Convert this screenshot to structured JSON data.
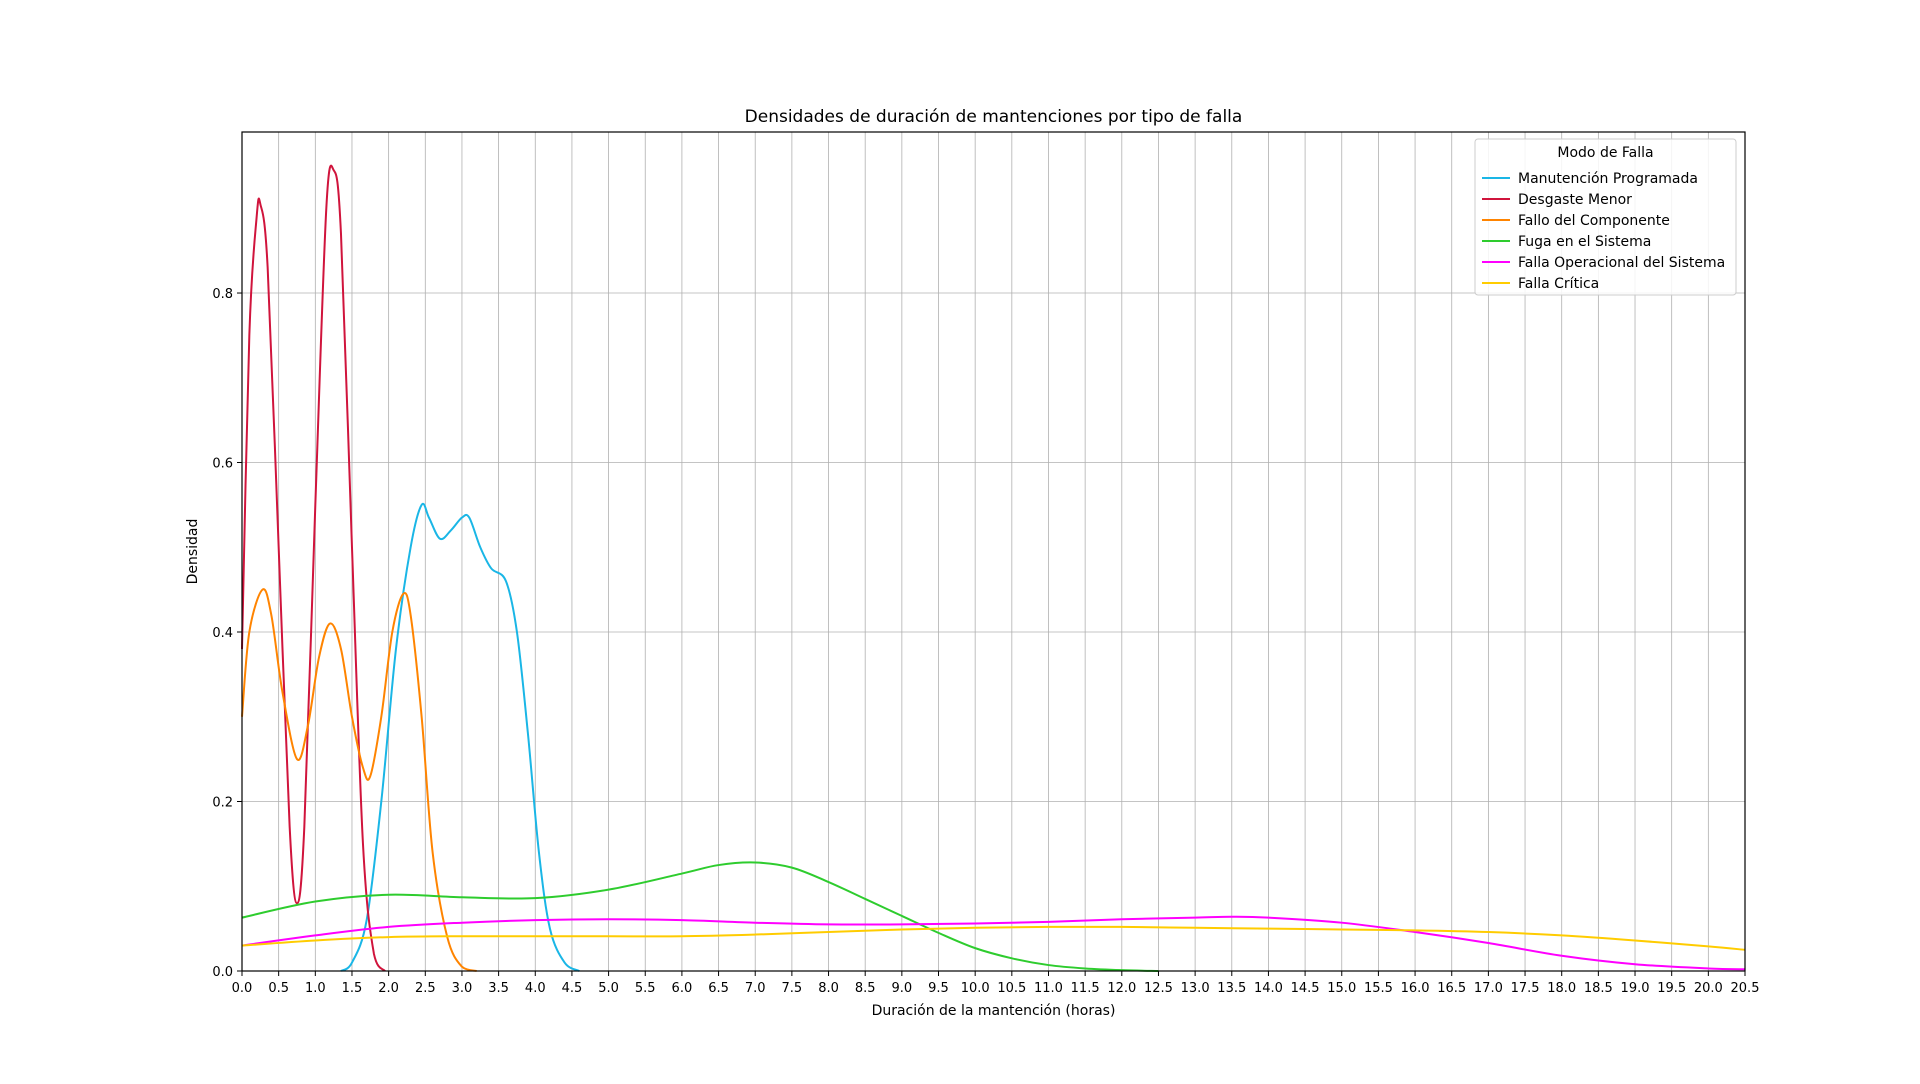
{
  "chart_data": {
    "type": "line",
    "title": "Densidades de duración de mantenciones por tipo de falla",
    "xlabel": "Duración de la mantención (horas)",
    "ylabel": "Densidad",
    "xlim": [
      0,
      20.5
    ],
    "ylim": [
      0,
      0.99
    ],
    "x_ticks": [
      0.0,
      0.5,
      1.0,
      1.5,
      2.0,
      2.5,
      3.0,
      3.5,
      4.0,
      4.5,
      5.0,
      5.5,
      6.0,
      6.5,
      7.0,
      7.5,
      8.0,
      8.5,
      9.0,
      9.5,
      10.0,
      10.5,
      11.0,
      11.5,
      12.0,
      12.5,
      13.0,
      13.5,
      14.0,
      14.5,
      15.0,
      15.5,
      16.0,
      16.5,
      17.0,
      17.5,
      18.0,
      18.5,
      19.0,
      19.5,
      20.0,
      20.5
    ],
    "y_ticks": [
      0.0,
      0.2,
      0.4,
      0.6,
      0.8
    ],
    "grid": true,
    "legend": {
      "title": "Modo de Falla",
      "placement": "top-right"
    },
    "series": [
      {
        "name": "Manutención Programada",
        "color": "#1ab6e6",
        "points": [
          [
            1.35,
            0.0
          ],
          [
            1.5,
            0.01
          ],
          [
            1.7,
            0.06
          ],
          [
            1.9,
            0.2
          ],
          [
            2.1,
            0.38
          ],
          [
            2.3,
            0.5
          ],
          [
            2.45,
            0.55
          ],
          [
            2.55,
            0.535
          ],
          [
            2.7,
            0.51
          ],
          [
            2.85,
            0.52
          ],
          [
            3.0,
            0.535
          ],
          [
            3.1,
            0.535
          ],
          [
            3.25,
            0.5
          ],
          [
            3.4,
            0.475
          ],
          [
            3.6,
            0.46
          ],
          [
            3.75,
            0.4
          ],
          [
            3.9,
            0.28
          ],
          [
            4.05,
            0.14
          ],
          [
            4.2,
            0.05
          ],
          [
            4.4,
            0.01
          ],
          [
            4.6,
            0.0
          ]
        ]
      },
      {
        "name": "Desgaste Menor",
        "color": "#d0143c",
        "points": [
          [
            0.0,
            0.38
          ],
          [
            0.1,
            0.75
          ],
          [
            0.2,
            0.89
          ],
          [
            0.25,
            0.905
          ],
          [
            0.35,
            0.83
          ],
          [
            0.5,
            0.5
          ],
          [
            0.65,
            0.17
          ],
          [
            0.75,
            0.08
          ],
          [
            0.85,
            0.17
          ],
          [
            1.0,
            0.55
          ],
          [
            1.15,
            0.9
          ],
          [
            1.25,
            0.945
          ],
          [
            1.35,
            0.87
          ],
          [
            1.5,
            0.5
          ],
          [
            1.65,
            0.15
          ],
          [
            1.8,
            0.02
          ],
          [
            1.95,
            0.0
          ]
        ]
      },
      {
        "name": "Fallo del Componente",
        "color": "#ff8400",
        "points": [
          [
            0.0,
            0.3
          ],
          [
            0.1,
            0.4
          ],
          [
            0.28,
            0.45
          ],
          [
            0.4,
            0.42
          ],
          [
            0.55,
            0.33
          ],
          [
            0.75,
            0.25
          ],
          [
            0.9,
            0.29
          ],
          [
            1.05,
            0.37
          ],
          [
            1.2,
            0.41
          ],
          [
            1.35,
            0.38
          ],
          [
            1.5,
            0.3
          ],
          [
            1.65,
            0.24
          ],
          [
            1.75,
            0.23
          ],
          [
            1.9,
            0.3
          ],
          [
            2.05,
            0.4
          ],
          [
            2.2,
            0.445
          ],
          [
            2.3,
            0.42
          ],
          [
            2.45,
            0.3
          ],
          [
            2.6,
            0.14
          ],
          [
            2.8,
            0.04
          ],
          [
            3.0,
            0.005
          ],
          [
            3.2,
            0.0
          ]
        ]
      },
      {
        "name": "Fuga en el Sistema",
        "color": "#2ecc2e",
        "points": [
          [
            0.0,
            0.063
          ],
          [
            1.0,
            0.082
          ],
          [
            2.0,
            0.09
          ],
          [
            3.0,
            0.087
          ],
          [
            4.0,
            0.086
          ],
          [
            5.0,
            0.096
          ],
          [
            6.0,
            0.115
          ],
          [
            6.5,
            0.125
          ],
          [
            7.0,
            0.128
          ],
          [
            7.5,
            0.122
          ],
          [
            8.0,
            0.105
          ],
          [
            8.5,
            0.085
          ],
          [
            9.0,
            0.065
          ],
          [
            9.5,
            0.045
          ],
          [
            10.0,
            0.027
          ],
          [
            10.5,
            0.015
          ],
          [
            11.0,
            0.007
          ],
          [
            11.5,
            0.003
          ],
          [
            12.0,
            0.001
          ],
          [
            12.5,
            0.0
          ]
        ]
      },
      {
        "name": "Falla Operacional del Sistema",
        "color": "#ff00ff",
        "points": [
          [
            0.0,
            0.03
          ],
          [
            1.0,
            0.042
          ],
          [
            2.0,
            0.052
          ],
          [
            3.0,
            0.057
          ],
          [
            4.0,
            0.06
          ],
          [
            5.0,
            0.061
          ],
          [
            6.0,
            0.06
          ],
          [
            7.0,
            0.057
          ],
          [
            8.0,
            0.055
          ],
          [
            9.0,
            0.055
          ],
          [
            10.0,
            0.056
          ],
          [
            11.0,
            0.058
          ],
          [
            12.0,
            0.061
          ],
          [
            13.0,
            0.063
          ],
          [
            13.5,
            0.064
          ],
          [
            14.0,
            0.063
          ],
          [
            15.0,
            0.057
          ],
          [
            16.0,
            0.046
          ],
          [
            17.0,
            0.033
          ],
          [
            18.0,
            0.018
          ],
          [
            19.0,
            0.008
          ],
          [
            20.0,
            0.003
          ],
          [
            20.5,
            0.002
          ]
        ]
      },
      {
        "name": "Falla Crítica",
        "color": "#ffcc00",
        "points": [
          [
            0.0,
            0.03
          ],
          [
            1.0,
            0.036
          ],
          [
            2.0,
            0.04
          ],
          [
            3.0,
            0.041
          ],
          [
            4.0,
            0.041
          ],
          [
            5.0,
            0.041
          ],
          [
            6.0,
            0.041
          ],
          [
            7.0,
            0.043
          ],
          [
            8.0,
            0.046
          ],
          [
            9.0,
            0.049
          ],
          [
            10.0,
            0.051
          ],
          [
            11.0,
            0.052
          ],
          [
            12.0,
            0.052
          ],
          [
            13.0,
            0.051
          ],
          [
            14.0,
            0.05
          ],
          [
            15.0,
            0.049
          ],
          [
            16.0,
            0.048
          ],
          [
            17.0,
            0.046
          ],
          [
            18.0,
            0.042
          ],
          [
            19.0,
            0.036
          ],
          [
            20.0,
            0.029
          ],
          [
            20.5,
            0.025
          ]
        ]
      }
    ]
  }
}
